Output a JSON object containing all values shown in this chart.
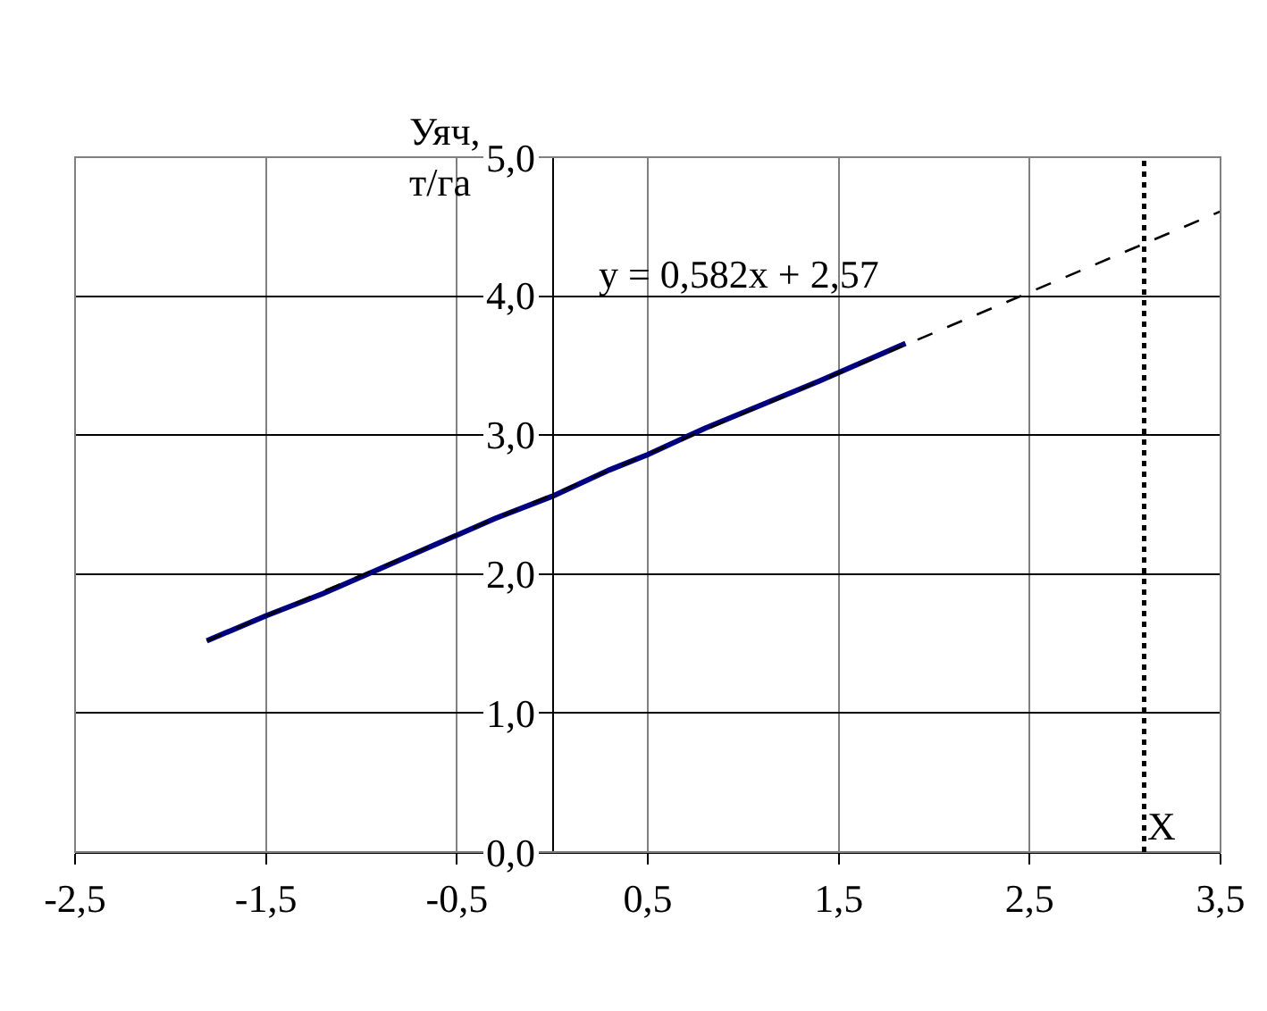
{
  "chart_data": {
    "type": "line",
    "ylabel": "Уяч,\nт/га",
    "xlim": [
      -2.5,
      3.5
    ],
    "xticks": [
      {
        "value": -2.5,
        "label": "-2,5"
      },
      {
        "value": -1.5,
        "label": "-1,5"
      },
      {
        "value": -0.5,
        "label": "-0,5"
      },
      {
        "value": 0.5,
        "label": "0,5"
      },
      {
        "value": 1.5,
        "label": "1,5"
      },
      {
        "value": 2.5,
        "label": "2,5"
      },
      {
        "value": 3.5,
        "label": "3,5"
      }
    ],
    "ylim": [
      0,
      5
    ],
    "yticks": [
      {
        "value": 0,
        "label": "0,0"
      },
      {
        "value": 1,
        "label": "1,0"
      },
      {
        "value": 2,
        "label": "2,0"
      },
      {
        "value": 3,
        "label": "3,0"
      },
      {
        "value": 4,
        "label": "4,0"
      },
      {
        "value": 5,
        "label": "5,0"
      }
    ],
    "grid": true,
    "marker": "none",
    "series": [
      {
        "color": "#000080",
        "line_style": "solid",
        "x": [
          -1.81,
          -1.5,
          -1.2,
          -0.9,
          -0.6,
          -0.3,
          0,
          0.3,
          0.5,
          0.8,
          1.1,
          1.4,
          1.7,
          1.85
        ],
        "values": [
          1.52,
          1.7,
          1.86,
          2.04,
          2.22,
          2.4,
          2.56,
          2.75,
          2.86,
          3.05,
          3.22,
          3.39,
          3.57,
          3.66
        ]
      },
      {
        "color": "#000000",
        "line_style": "dashed",
        "x": [
          -1.81,
          3.5
        ],
        "values": [
          1.52,
          4.61
        ]
      }
    ],
    "ref_lines": [
      {
        "axis": "x",
        "value": 3.1,
        "label": "X",
        "color": "#000000",
        "line_style": "dotted"
      }
    ],
    "annotations": [
      "y = 0,582x + 2,57"
    ]
  }
}
